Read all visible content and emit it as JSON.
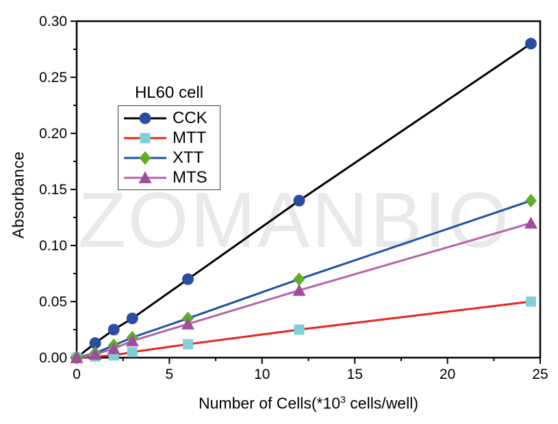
{
  "watermark": {
    "text": "ZOMANBIO",
    "color": "#e9e9e9"
  },
  "axis_color": "#000000",
  "chart_data": {
    "type": "line",
    "title": "",
    "legend_title": "HL60 cell",
    "legend_position": "upper-left-inside",
    "grid": false,
    "xlabel_prefix": "Number of Cells(*10",
    "xlabel_sup": "3",
    "xlabel_suffix": " cells/well)",
    "ylabel": "Absorbance",
    "xlim": [
      0,
      25
    ],
    "ylim": [
      0,
      0.3
    ],
    "x_tick_labels": [
      "0",
      "5",
      "10",
      "15",
      "20",
      "25"
    ],
    "y_tick_labels": [
      "0.00",
      "0.05",
      "0.10",
      "0.15",
      "0.20",
      "0.25",
      "0.30"
    ],
    "x_minor_ticks": [
      2.5,
      7.5,
      12.5,
      17.5,
      22.5
    ],
    "y_minor_ticks": [
      0.025,
      0.075,
      0.125,
      0.175,
      0.225,
      0.275
    ],
    "x": [
      0,
      1,
      2,
      3,
      6,
      12,
      24.5
    ],
    "series": [
      {
        "name": "CCK",
        "marker": "circle",
        "line_color": "#000000",
        "marker_color": "#2a4da0",
        "values": [
          0,
          0.013,
          0.025,
          0.035,
          0.07,
          0.14,
          0.28
        ]
      },
      {
        "name": "MTT",
        "marker": "square",
        "line_color": "#e8231a",
        "marker_color": "#80d0da",
        "values": [
          0,
          0.001,
          0.002,
          0.005,
          0.012,
          0.025,
          0.05
        ]
      },
      {
        "name": "XTT",
        "marker": "diamond",
        "line_color": "#2050a0",
        "marker_color": "#60ae28",
        "values": [
          0,
          0.004,
          0.011,
          0.018,
          0.035,
          0.07,
          0.14
        ]
      },
      {
        "name": "MTS",
        "marker": "triangle",
        "line_color": "#b362ae",
        "marker_color": "#a04d9d",
        "values": [
          0,
          0.003,
          0.008,
          0.015,
          0.03,
          0.06,
          0.12
        ]
      }
    ]
  }
}
